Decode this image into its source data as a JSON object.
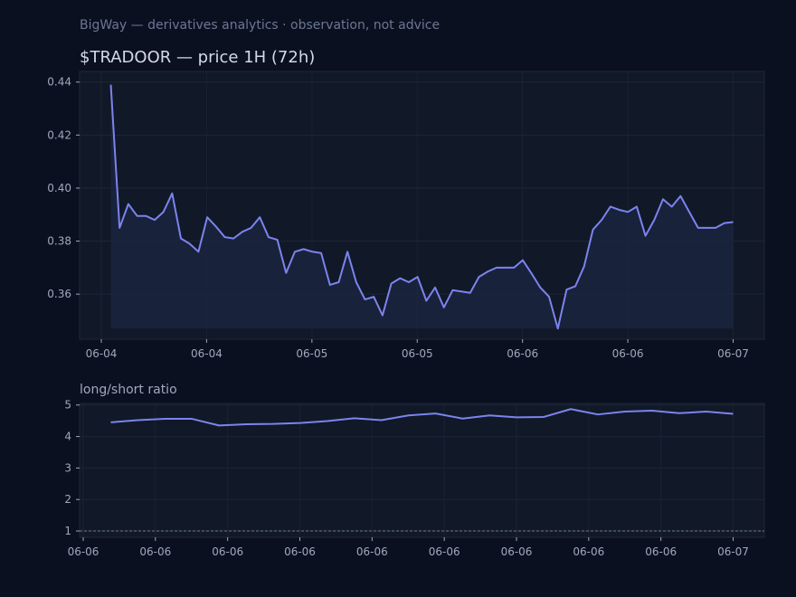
{
  "header": {
    "subtitle": "BigWay — derivatives analytics · observation, not advice",
    "title": "$TRADOOR — price 1H (72h)"
  },
  "colors": {
    "background": "#0b1020",
    "plot_background": "#111827",
    "line": "#7b84ee",
    "fill": "#1b2440",
    "text": "#a0a8bb"
  },
  "chart_data": [
    {
      "type": "area",
      "title": "$TRADOOR — price 1H (72h)",
      "ylim": [
        0.343,
        0.444
      ],
      "yticks": [
        0.36,
        0.38,
        0.4,
        0.42,
        0.44
      ],
      "ytick_labels": [
        "0.36",
        "0.38",
        "0.40",
        "0.42",
        "0.44"
      ],
      "xtick_labels": [
        "06-04",
        "06-04",
        "06-05",
        "06-05",
        "06-06",
        "06-06",
        "06-07"
      ],
      "grid": true,
      "series": [
        {
          "values": [
            0.439,
            0.385,
            0.394,
            0.3895,
            0.3895,
            0.388,
            0.391,
            0.398,
            0.381,
            0.379,
            0.376,
            0.389,
            0.3855,
            0.3815,
            0.381,
            0.3835,
            0.385,
            0.389,
            0.3815,
            0.3805,
            0.368,
            0.376,
            0.377,
            0.376,
            0.3755,
            0.3635,
            0.3645,
            0.376,
            0.3645,
            0.358,
            0.359,
            0.352,
            0.364,
            0.366,
            0.3645,
            0.3665,
            0.3575,
            0.3625,
            0.355,
            0.3615,
            0.361,
            0.3605,
            0.3665,
            0.3685,
            0.37,
            0.37,
            0.37,
            0.3728,
            0.3678,
            0.3625,
            0.359,
            0.347,
            0.3617,
            0.363,
            0.3705,
            0.3843,
            0.388,
            0.393,
            0.3918,
            0.391,
            0.393,
            0.382,
            0.388,
            0.3958,
            0.393,
            0.397,
            0.391,
            0.385,
            0.385,
            0.385,
            0.3868,
            0.3872
          ]
        }
      ]
    },
    {
      "type": "line",
      "title": "long/short ratio",
      "ylim": [
        0.8,
        5.05
      ],
      "yticks": [
        1,
        2,
        3,
        4,
        5
      ],
      "ytick_labels": [
        "1",
        "2",
        "3",
        "4",
        "5"
      ],
      "xtick_labels": [
        "06-06",
        "06-06",
        "06-06",
        "06-06",
        "06-06",
        "06-06",
        "06-06",
        "06-06",
        "06-06",
        "06-07"
      ],
      "reference_line": 1,
      "grid": true,
      "series": [
        {
          "values": [
            4.45,
            4.52,
            4.56,
            4.56,
            4.35,
            4.39,
            4.4,
            4.43,
            4.49,
            4.58,
            4.52,
            4.67,
            4.73,
            4.57,
            4.67,
            4.61,
            4.62,
            4.87,
            4.7,
            4.79,
            4.82,
            4.74,
            4.79,
            4.72
          ]
        }
      ]
    }
  ]
}
